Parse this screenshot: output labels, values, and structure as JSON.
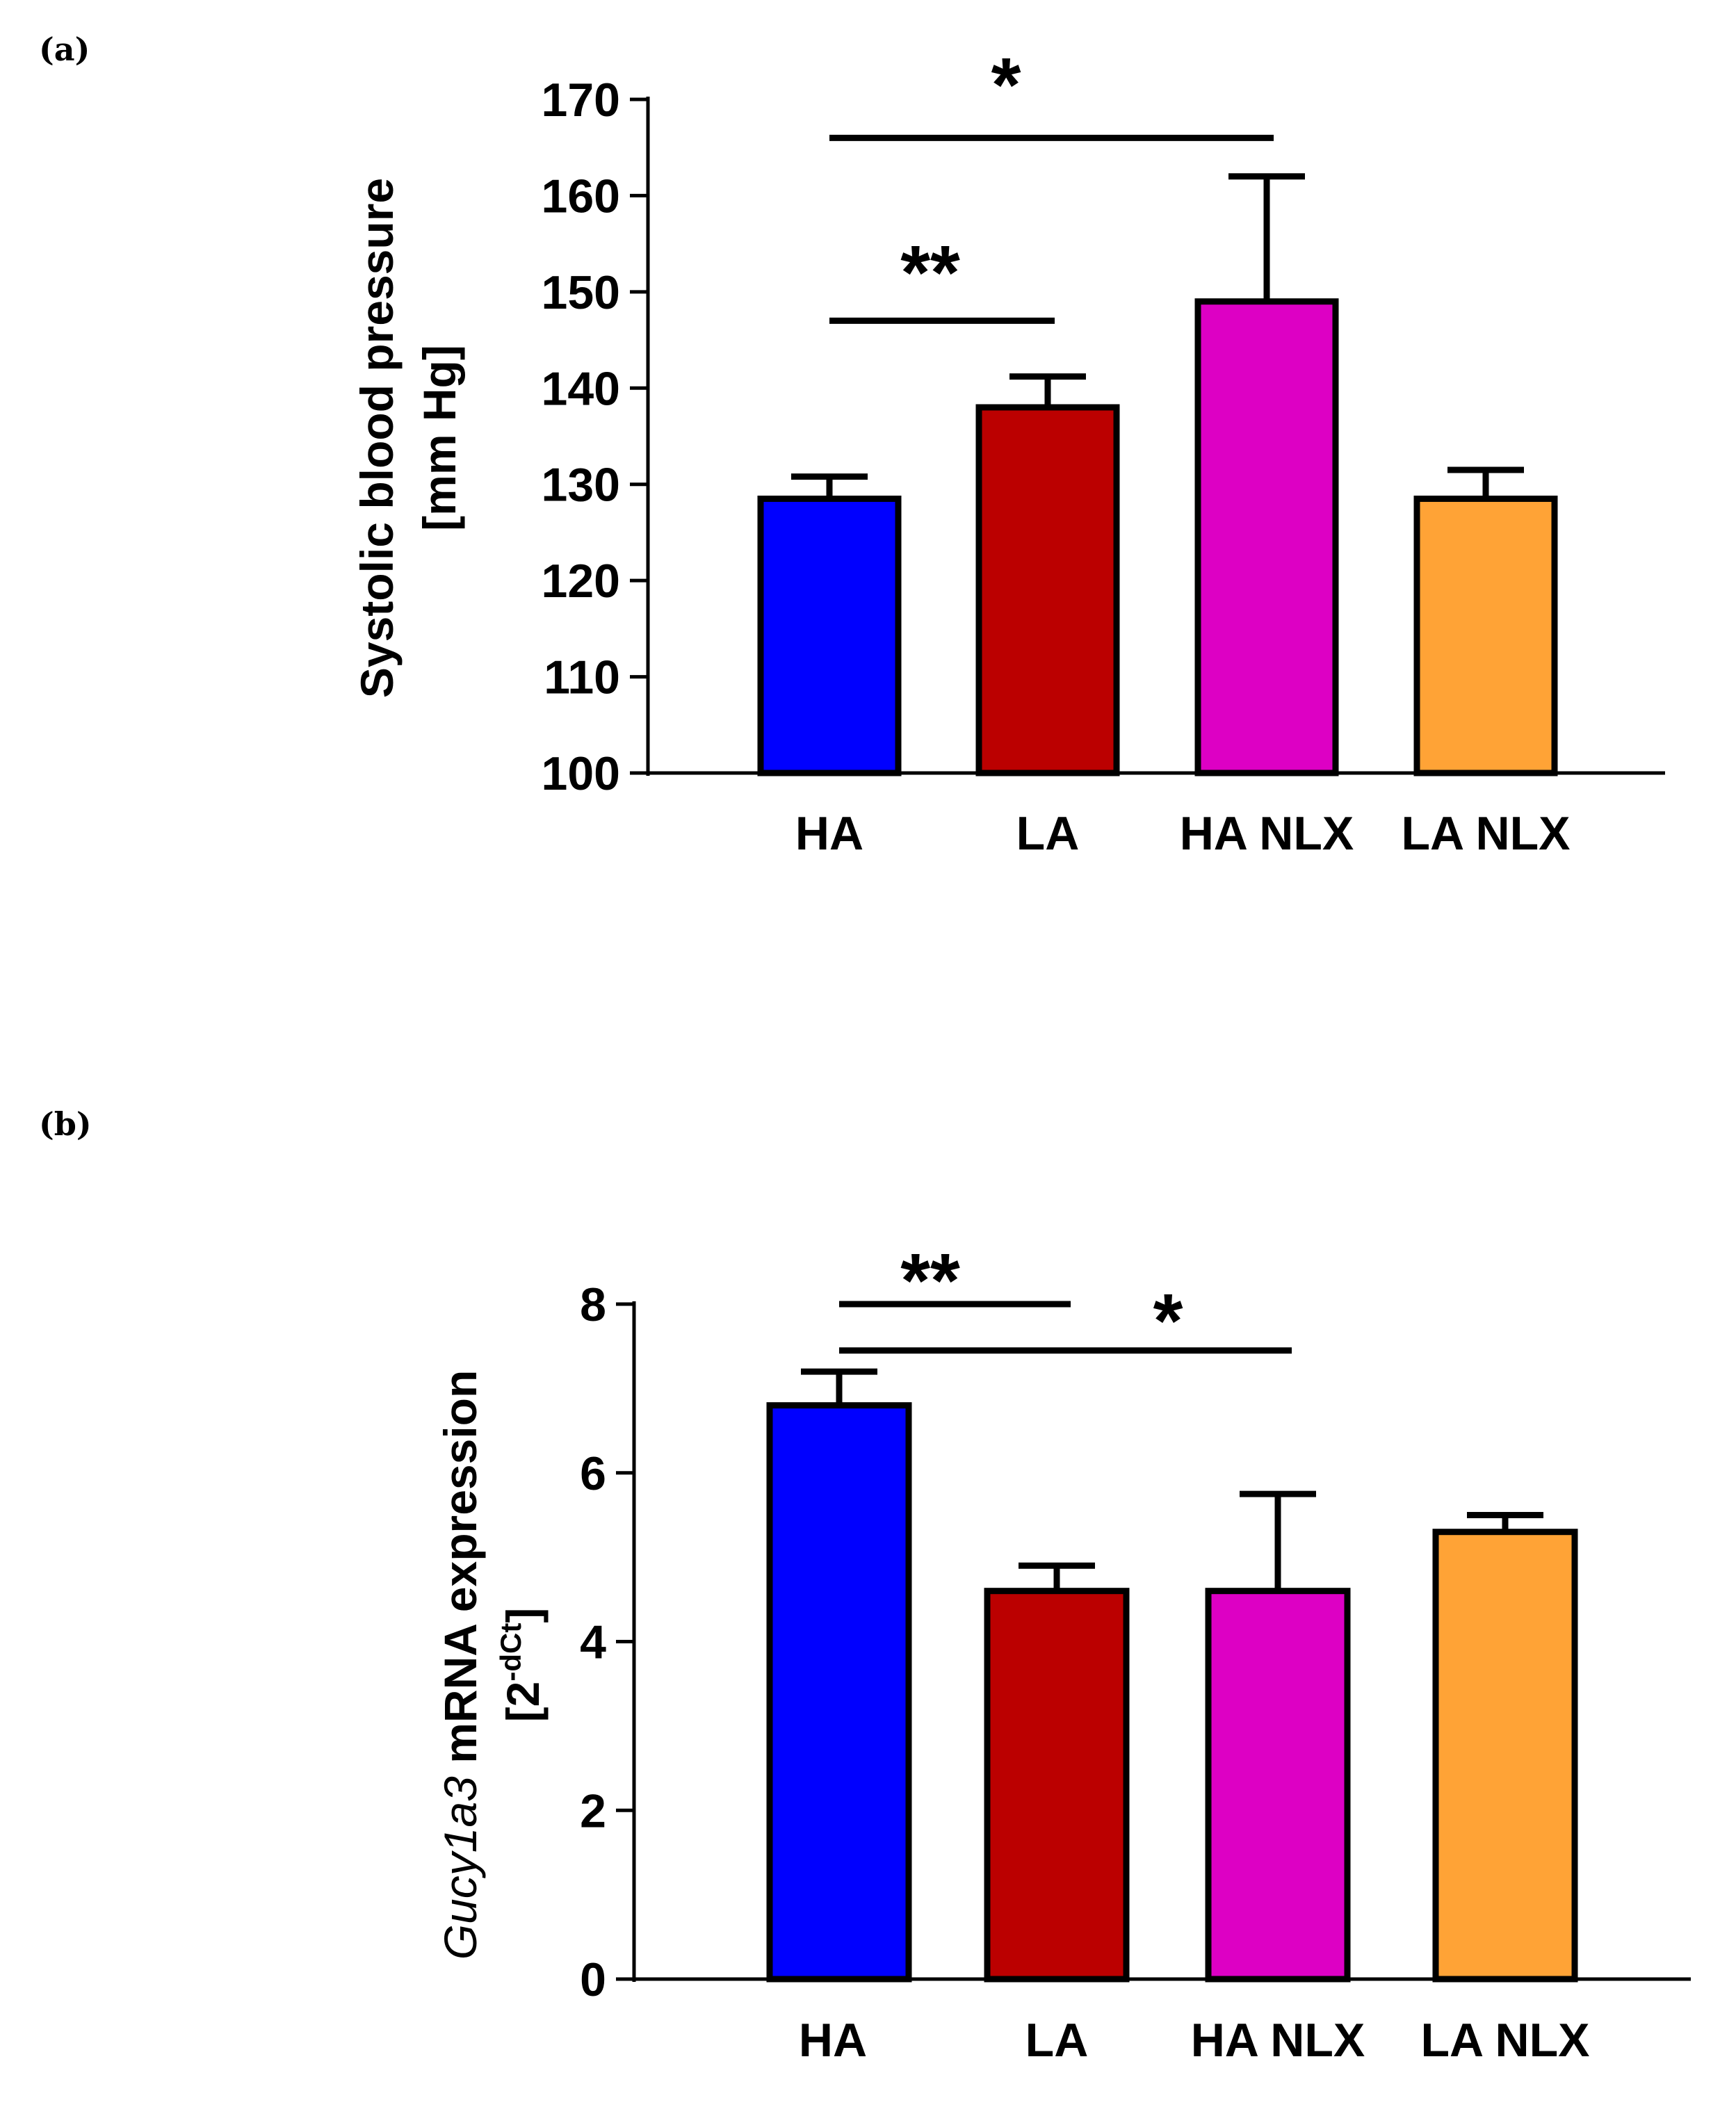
{
  "panels": [
    {
      "label": "(a)"
    },
    {
      "label": "(b)"
    }
  ],
  "chart_data": [
    {
      "type": "bar",
      "title": "",
      "categories": [
        "HA",
        "LA",
        "HA NLX",
        "LA NLX"
      ],
      "values": [
        128.5,
        138,
        149,
        128.5
      ],
      "errors": [
        2.3,
        3.2,
        13,
        3
      ],
      "colors": [
        "#0000ff",
        "#bb0000",
        "#dd00c4",
        "#ffa336"
      ],
      "ylabel_line1": "Systolic blood pressure",
      "ylabel_line2": "[mm Hg]",
      "xlabel": "",
      "ylim": [
        100,
        170
      ],
      "yticks": [
        "100",
        "110",
        "120",
        "130",
        "140",
        "150",
        "160",
        "170"
      ],
      "significance": [
        {
          "from": "HA",
          "to": "LA",
          "y": 147,
          "label": "**"
        },
        {
          "from": "HA",
          "to": "HA NLX",
          "y": 166,
          "label": "*"
        }
      ]
    },
    {
      "type": "bar",
      "title": "",
      "categories": [
        "HA",
        "LA",
        "HA NLX",
        "LA NLX"
      ],
      "values": [
        6.8,
        4.6,
        4.6,
        5.3
      ],
      "errors": [
        0.4,
        0.3,
        1.15,
        0.2
      ],
      "colors": [
        "#0000ff",
        "#bb0000",
        "#dd00c4",
        "#ffa336"
      ],
      "ylabel_italic": "Gucy1a3",
      "ylabel_rest": " mRNA expression",
      "ylabel_line2_base": "[2",
      "ylabel_line2_sup": "-dCt",
      "ylabel_line2_end": "]",
      "xlabel": "",
      "ylim": [
        0,
        8
      ],
      "yticks": [
        "0",
        "2",
        "4",
        "6",
        "8"
      ],
      "significance": [
        {
          "from": "HA",
          "to": "LA",
          "y": 8.0,
          "label": "**"
        },
        {
          "from": "HA",
          "to": "HA NLX",
          "y": 7.45,
          "label": "*"
        }
      ]
    }
  ]
}
